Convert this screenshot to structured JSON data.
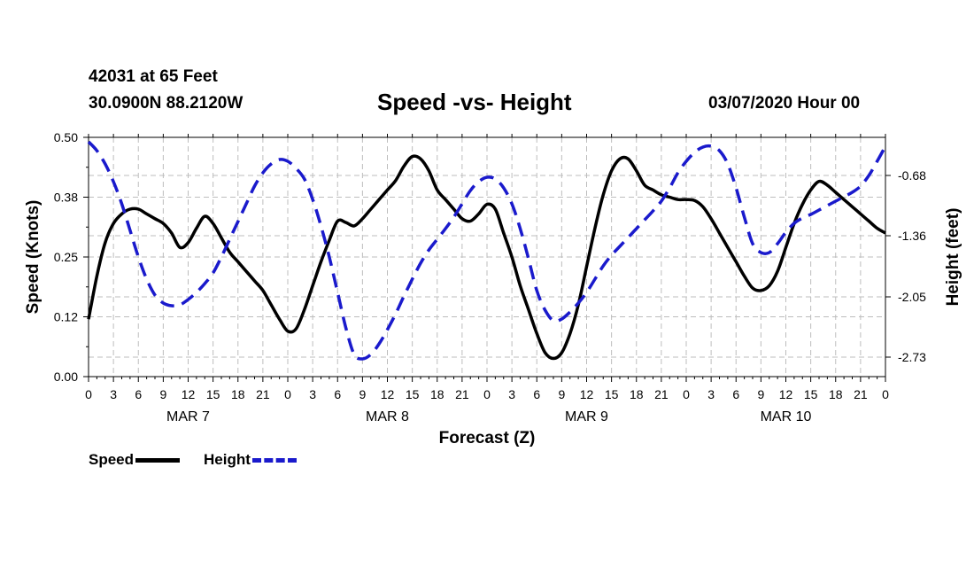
{
  "header": {
    "station": "42031 at 65 Feet",
    "coords": "30.0900N 88.2120W",
    "title": "Speed -vs- Height",
    "date": "03/07/2020 Hour 00"
  },
  "colors": {
    "speed": "#000000",
    "height": "#1a1acc",
    "grid": "#bdbdbd"
  },
  "chart_data": {
    "type": "line",
    "title": "Speed -vs- Height",
    "xlabel": "Forecast (Z)",
    "ylabel_left": "Speed (Knots)",
    "ylabel_right": "Height (feet)",
    "x_range_hours": [
      0,
      96
    ],
    "ylim_left": [
      0,
      0.5
    ],
    "ylim_right": [
      -2.95,
      -0.25
    ],
    "left_ticks": [
      0.0,
      0.125,
      0.25,
      0.375,
      0.5
    ],
    "left_tick_labels": [
      "0.00",
      "0.12",
      "0.25",
      "0.38",
      "0.50"
    ],
    "right_ticks": [
      -0.68,
      -1.36,
      -2.05,
      -2.73
    ],
    "right_tick_labels": [
      "-0.68",
      "-1.36",
      "-2.05",
      "-2.73"
    ],
    "x_tick_labels": [
      "0",
      "3",
      "6",
      "9",
      "12",
      "15",
      "18",
      "21",
      "0",
      "3",
      "6",
      "9",
      "12",
      "15",
      "18",
      "21",
      "0",
      "3",
      "6",
      "9",
      "12",
      "15",
      "18",
      "21",
      "0",
      "3",
      "6",
      "9",
      "12",
      "15",
      "18",
      "21",
      "0"
    ],
    "day_labels": [
      {
        "label": "MAR 7",
        "hour": 12
      },
      {
        "label": "MAR 8",
        "hour": 36
      },
      {
        "label": "MAR 9",
        "hour": 60
      },
      {
        "label": "MAR 10",
        "hour": 84
      }
    ],
    "grid": true,
    "legend": "bottom-left",
    "series": [
      {
        "name": "Speed",
        "axis": "left",
        "style": "solid",
        "x": [
          0,
          1,
          2,
          3,
          4,
          5,
          6,
          7,
          8,
          9,
          10,
          11,
          12,
          13,
          14,
          15,
          16,
          17,
          18,
          19,
          20,
          21,
          22,
          23,
          24,
          25,
          26,
          27,
          28,
          29,
          30,
          31,
          32,
          33,
          34,
          35,
          36,
          37,
          38,
          39,
          40,
          41,
          42,
          43,
          44,
          45,
          46,
          47,
          48,
          49,
          50,
          51,
          52,
          53,
          54,
          55,
          56,
          57,
          58,
          59,
          60,
          61,
          62,
          63,
          64,
          65,
          66,
          67,
          68,
          69,
          70,
          71,
          72,
          73,
          74,
          75,
          76,
          77,
          78,
          79,
          80,
          81,
          82,
          83,
          84,
          85,
          86,
          87,
          88,
          89,
          90,
          91,
          92,
          93,
          94,
          95,
          96
        ],
        "values": [
          0.12,
          0.21,
          0.28,
          0.32,
          0.34,
          0.35,
          0.35,
          0.34,
          0.33,
          0.32,
          0.3,
          0.27,
          0.28,
          0.31,
          0.335,
          0.32,
          0.29,
          0.26,
          0.24,
          0.22,
          0.2,
          0.18,
          0.15,
          0.12,
          0.095,
          0.1,
          0.14,
          0.19,
          0.24,
          0.285,
          0.325,
          0.322,
          0.315,
          0.33,
          0.35,
          0.37,
          0.39,
          0.41,
          0.44,
          0.46,
          0.455,
          0.43,
          0.39,
          0.37,
          0.35,
          0.33,
          0.325,
          0.34,
          0.36,
          0.35,
          0.3,
          0.25,
          0.19,
          0.14,
          0.09,
          0.05,
          0.038,
          0.05,
          0.09,
          0.15,
          0.23,
          0.31,
          0.38,
          0.43,
          0.455,
          0.455,
          0.43,
          0.4,
          0.39,
          0.38,
          0.375,
          0.37,
          0.37,
          0.368,
          0.355,
          0.33,
          0.3,
          0.27,
          0.24,
          0.21,
          0.185,
          0.18,
          0.19,
          0.22,
          0.27,
          0.32,
          0.36,
          0.39,
          0.408,
          0.4,
          0.385,
          0.37,
          0.355,
          0.34,
          0.325,
          0.31,
          0.3
        ]
      },
      {
        "name": "Height",
        "axis": "right",
        "style": "dashed",
        "x": [
          0,
          1,
          2,
          3,
          4,
          5,
          6,
          7,
          8,
          9,
          10,
          11,
          12,
          13,
          14,
          15,
          16,
          17,
          18,
          19,
          20,
          21,
          22,
          23,
          24,
          25,
          26,
          27,
          28,
          29,
          30,
          31,
          32,
          33,
          34,
          35,
          36,
          37,
          38,
          39,
          40,
          41,
          42,
          43,
          44,
          45,
          46,
          47,
          48,
          49,
          50,
          51,
          52,
          53,
          54,
          55,
          56,
          57,
          58,
          59,
          60,
          61,
          62,
          63,
          64,
          65,
          66,
          67,
          68,
          69,
          70,
          71,
          72,
          73,
          74,
          75,
          76,
          77,
          78,
          79,
          80,
          81,
          82,
          83,
          84,
          85,
          86,
          87,
          88,
          89,
          90,
          91,
          92,
          93,
          94,
          95,
          96
        ],
        "values": [
          -0.3,
          -0.4,
          -0.55,
          -0.75,
          -1.0,
          -1.3,
          -1.6,
          -1.85,
          -2.03,
          -2.12,
          -2.15,
          -2.14,
          -2.08,
          -2.0,
          -1.9,
          -1.78,
          -1.6,
          -1.4,
          -1.2,
          -1.0,
          -0.8,
          -0.65,
          -0.55,
          -0.5,
          -0.52,
          -0.6,
          -0.72,
          -0.95,
          -1.25,
          -1.6,
          -2.0,
          -2.4,
          -2.7,
          -2.75,
          -2.7,
          -2.58,
          -2.42,
          -2.24,
          -2.04,
          -1.85,
          -1.67,
          -1.52,
          -1.4,
          -1.28,
          -1.15,
          -1.0,
          -0.85,
          -0.75,
          -0.7,
          -0.72,
          -0.82,
          -1.0,
          -1.28,
          -1.62,
          -1.98,
          -2.2,
          -2.32,
          -2.3,
          -2.22,
          -2.12,
          -2.0,
          -1.85,
          -1.7,
          -1.58,
          -1.48,
          -1.38,
          -1.28,
          -1.18,
          -1.08,
          -0.97,
          -0.82,
          -0.65,
          -0.52,
          -0.42,
          -0.36,
          -0.35,
          -0.4,
          -0.55,
          -0.82,
          -1.15,
          -1.45,
          -1.55,
          -1.55,
          -1.45,
          -1.32,
          -1.22,
          -1.16,
          -1.12,
          -1.07,
          -1.02,
          -0.97,
          -0.92,
          -0.87,
          -0.8,
          -0.68,
          -0.52,
          -0.35
        ]
      }
    ]
  },
  "legend_labels": {
    "speed": "Speed",
    "height": "Height"
  }
}
